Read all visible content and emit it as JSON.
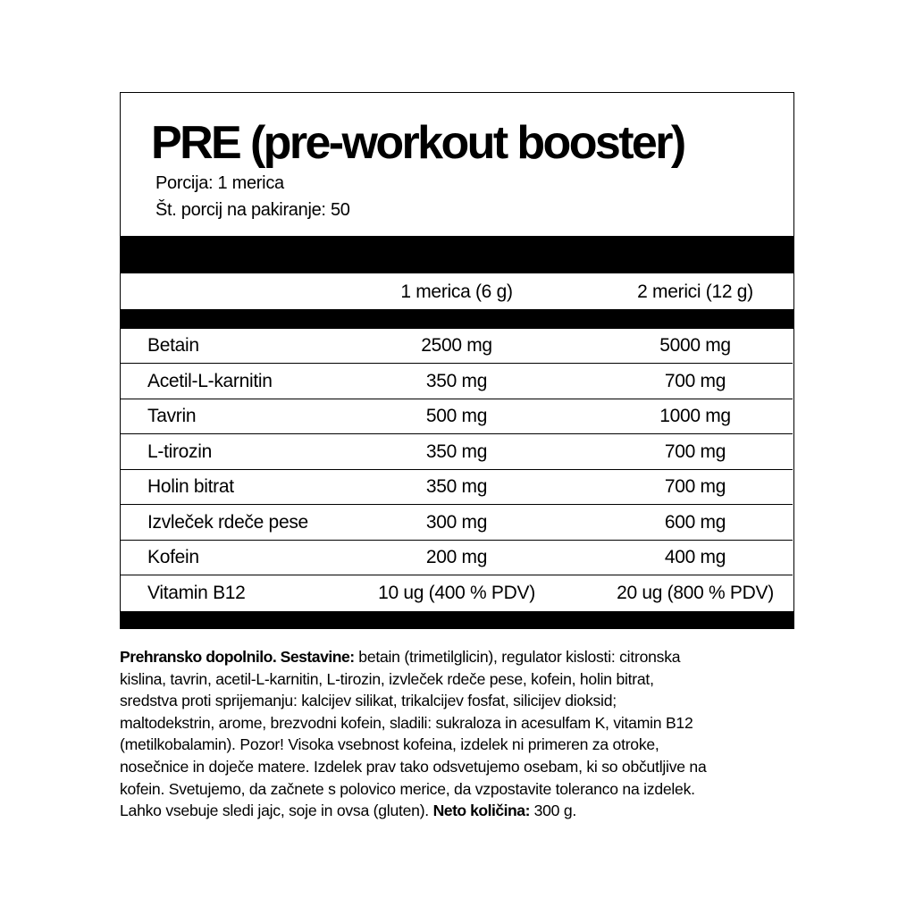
{
  "header": {
    "title": "PRE (pre-workout booster)",
    "serving": "Porcija: 1 merica",
    "servings_per_pack": "Št. porcij na pakiranje: 50"
  },
  "table": {
    "columns": [
      "",
      "1 merica (6 g)",
      "2 merici (12 g)"
    ],
    "rows": [
      [
        "Betain",
        "2500 mg",
        "5000 mg"
      ],
      [
        "Acetil-L-karnitin",
        "350 mg",
        "700 mg"
      ],
      [
        "Tavrin",
        "500 mg",
        "1000 mg"
      ],
      [
        "L-tirozin",
        "350 mg",
        "700 mg"
      ],
      [
        "Holin bitrat",
        "350 mg",
        "700 mg"
      ],
      [
        "Izvleček rdeče pese",
        "300 mg",
        "600 mg"
      ],
      [
        "Kofein",
        "200 mg",
        "400 mg"
      ],
      [
        "Vitamin B12",
        "10 ug (400 % PDV)",
        "20 ug (800 % PDV)"
      ]
    ]
  },
  "description": {
    "lines": [
      [
        {
          "b": "Prehransko dopolnilo. Sestavine:"
        },
        {
          "t": " betain (trimetilglicin), regulator kislosti: citronska"
        }
      ],
      [
        {
          "t": "kislina, tavrin, acetil-L-karnitin, L-tirozin, izvleček rdeče pese, kofein, holin bitrat,"
        }
      ],
      [
        {
          "t": "sredstva proti sprijemanju: kalcijev silikat, trikalcijev fosfat, silicijev dioksid;"
        }
      ],
      [
        {
          "t": "maltodekstrin, arome, brezvodni kofein, sladili: sukraloza in acesulfam K, vitamin B12"
        }
      ],
      [
        {
          "t": "(metilkobalamin). Pozor! Visoka vsebnost kofeina, izdelek ni primeren za otroke,"
        }
      ],
      [
        {
          "t": "nosečnice in doječe matere. Izdelek prav tako odsvetujemo osebam, ki so občutljive na"
        }
      ],
      [
        {
          "t": "kofein. Svetujemo, da začnete s polovico merice, da vzpostavite toleranco na izdelek."
        }
      ],
      [
        {
          "t": "Lahko vsebuje sledi jajc, soje in ovsa (gluten). "
        },
        {
          "b": "Neto količina:"
        },
        {
          "t": " 300 g."
        }
      ]
    ]
  }
}
